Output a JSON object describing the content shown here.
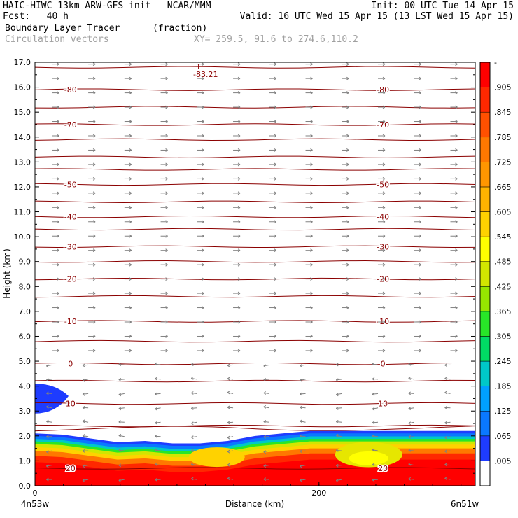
{
  "header": {
    "line1_left": "HAIC-HIWC 13km ARW-GFS init   NCAR/MMM",
    "line1_right": "Init: 00 UTC Tue 14 Apr 15",
    "line2_left": "Fcst:   40 h",
    "line2_right": "Valid: 16 UTC Wed 15 Apr 15 (13 LST Wed 15 Apr 15)",
    "line3_left": "Boundary Layer Tracer",
    "line3_unit": "(fraction)",
    "line4_left": "Circulation vectors",
    "line4_xy": "XY= 259.5, 91.6 to 274.6,110.2"
  },
  "chart_data": {
    "type": "cross-section contour",
    "ylabel": "Height (km)",
    "xlabel": "Distance (km)",
    "xlim": [
      0,
      310
    ],
    "ylim": [
      0,
      17
    ],
    "y_ticks": [
      "0.0",
      "1.0",
      "2.0",
      "3.0",
      "4.0",
      "5.0",
      "6.0",
      "7.0",
      "8.0",
      "9.0",
      "10.0",
      "11.0",
      "12.0",
      "13.0",
      "14.0",
      "15.0",
      "16.0",
      "17.0"
    ],
    "x_ticks": [
      "0",
      "200"
    ],
    "x_end_labels": {
      "left": "4n53w",
      "right": "6n51w"
    },
    "colorbar": {
      "labels": [
        ".005",
        ".065",
        ".125",
        ".185",
        ".245",
        ".305",
        ".365",
        ".425",
        ".485",
        ".545",
        ".605",
        ".665",
        ".725",
        ".785",
        ".845",
        ".905"
      ],
      "top_label": "-",
      "colors": [
        "#ffffff",
        "#1e3cff",
        "#0a78ff",
        "#00a0ff",
        "#00c8c8",
        "#00dc64",
        "#28e628",
        "#96e600",
        "#d2e600",
        "#ffff00",
        "#ffd200",
        "#ffb400",
        "#ff9600",
        "#ff7800",
        "#ff5000",
        "#ff2800",
        "#ff0000"
      ]
    },
    "temperature_contours": [
      {
        "label": "-80",
        "level_km": 15.9
      },
      {
        "label": "-70",
        "level_km": 14.5
      },
      {
        "label": "-50",
        "level_km": 12.1
      },
      {
        "label": "-40",
        "level_km": 10.8
      },
      {
        "label": "-30",
        "level_km": 9.6
      },
      {
        "label": "-20",
        "level_km": 8.3
      },
      {
        "label": "-10",
        "level_km": 6.6
      },
      {
        "label": "0",
        "level_km": 4.9
      },
      {
        "label": "10",
        "level_km": 3.3
      },
      {
        "label": "20",
        "level_km": 0.7
      }
    ],
    "extra_contour_levels_km": [
      16.8,
      15.2,
      13.9,
      13.2,
      12.7,
      11.4,
      10.3,
      9.0,
      7.6,
      5.8,
      4.2,
      2.4
    ],
    "min_marker": {
      "label": "L",
      "value": "-83.21",
      "x_km": 120,
      "y_km": 16.5
    },
    "tracer_layer_top_km": [
      2.1,
      2.05,
      1.9,
      1.75,
      1.8,
      1.7,
      1.7,
      1.8,
      2.0,
      2.1,
      2.2,
      2.2,
      2.2,
      2.2,
      2.2,
      2.2,
      2.2
    ]
  }
}
